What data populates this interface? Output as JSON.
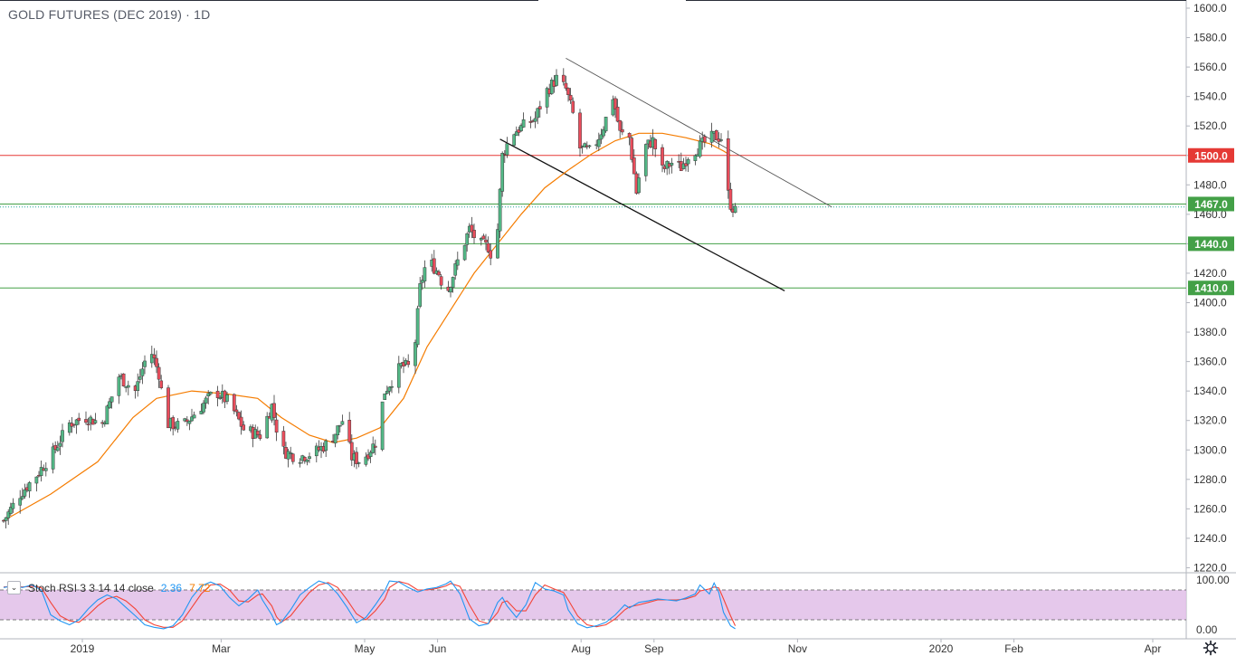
{
  "title": "GOLD FUTURES (DEC 2019) · 1D",
  "indicator": {
    "name": "Stoch RSI 3 3 14 14 close",
    "k_value": "2.36",
    "d_value": "7.72",
    "toggle_icon": "chevron-down-icon"
  },
  "settings_icon": "gear-icon",
  "colors": {
    "up": "#26a69a",
    "down": "#ef5350",
    "candle_body_up": "#53b987",
    "candle_body_down": "#eb4d5c",
    "ma": "#f57c00",
    "resistance": "#e53935",
    "support": "#43a047",
    "stoch_k": "#2196f3",
    "stoch_d": "#f44336",
    "stoch_band": "#e1bee7"
  },
  "chart_data": {
    "type": "candlestick",
    "price_axis": {
      "ticks": [
        "1600.0",
        "1580.0",
        "1560.0",
        "1540.0",
        "1520.0",
        "1500.0",
        "1480.0",
        "1460.0",
        "1440.0",
        "1420.0",
        "1400.0",
        "1380.0",
        "1360.0",
        "1340.0",
        "1320.0",
        "1300.0",
        "1280.0",
        "1260.0",
        "1240.0",
        "1220.0"
      ],
      "ylim": [
        1217,
        1603
      ]
    },
    "time_axis": {
      "labels": [
        "2019",
        "Mar",
        "May",
        "Jun",
        "Aug",
        "Sep",
        "Nov",
        "2020",
        "Feb",
        "Apr"
      ],
      "label_positions_days": [
        0,
        59,
        120,
        151,
        212,
        243,
        304,
        365,
        396,
        455
      ]
    },
    "horizontal_levels": [
      {
        "price": 1500.0,
        "label": "1500.0",
        "color": "#e53935"
      },
      {
        "price": 1467.0,
        "label": "1467.0",
        "color": "#43a047"
      },
      {
        "price": 1440.0,
        "label": "1440.0",
        "color": "#43a047"
      },
      {
        "price": 1410.0,
        "label": "1410.0",
        "color": "#43a047"
      }
    ],
    "trendlines": [
      {
        "from": {
          "day": 239,
          "price": 1566
        },
        "to": {
          "day": 352,
          "price": 1465
        }
      },
      {
        "from": {
          "day": 211,
          "price": 1511
        },
        "to": {
          "day": 332,
          "price": 1408
        }
      }
    ],
    "key_prices": [
      [
        0,
        1252
      ],
      [
        7,
        1270
      ],
      [
        14,
        1283
      ],
      [
        21,
        1298
      ],
      [
        28,
        1318
      ],
      [
        35,
        1322
      ],
      [
        42,
        1318
      ],
      [
        49,
        1350
      ],
      [
        56,
        1340
      ],
      [
        62,
        1370
      ],
      [
        66,
        1352
      ],
      [
        69,
        1318
      ],
      [
        76,
        1316
      ],
      [
        83,
        1328
      ],
      [
        90,
        1340
      ],
      [
        96,
        1332
      ],
      [
        102,
        1314
      ],
      [
        109,
        1310
      ],
      [
        114,
        1330
      ],
      [
        118,
        1300
      ],
      [
        125,
        1295
      ],
      [
        132,
        1298
      ],
      [
        139,
        1306
      ],
      [
        144,
        1320
      ],
      [
        148,
        1295
      ],
      [
        152,
        1292
      ],
      [
        158,
        1305
      ],
      [
        162,
        1340
      ],
      [
        169,
        1357
      ],
      [
        174,
        1356
      ],
      [
        177,
        1410
      ],
      [
        180,
        1430
      ],
      [
        185,
        1420
      ],
      [
        188,
        1405
      ],
      [
        193,
        1428
      ],
      [
        198,
        1450
      ],
      [
        202,
        1440
      ],
      [
        206,
        1438
      ],
      [
        209,
        1425
      ],
      [
        212,
        1500
      ],
      [
        216,
        1515
      ],
      [
        221,
        1520
      ],
      [
        226,
        1525
      ],
      [
        230,
        1542
      ],
      [
        235,
        1552
      ],
      [
        239,
        1545
      ],
      [
        242,
        1528
      ],
      [
        245,
        1505
      ],
      [
        250,
        1502
      ],
      [
        255,
        1520
      ],
      [
        259,
        1540
      ],
      [
        262,
        1515
      ],
      [
        266,
        1512
      ],
      [
        269,
        1475
      ],
      [
        272,
        1505
      ],
      [
        276,
        1510
      ],
      [
        280,
        1490
      ],
      [
        284,
        1495
      ],
      [
        288,
        1492
      ],
      [
        291,
        1500
      ],
      [
        295,
        1505
      ],
      [
        299,
        1510
      ],
      [
        302,
        1513
      ],
      [
        305,
        1512
      ],
      [
        307,
        1480
      ],
      [
        309,
        1467
      ],
      [
        311,
        1462
      ]
    ],
    "moving_average": [
      [
        0,
        1252
      ],
      [
        20,
        1270
      ],
      [
        40,
        1292
      ],
      [
        55,
        1322
      ],
      [
        65,
        1335
      ],
      [
        80,
        1340
      ],
      [
        95,
        1338
      ],
      [
        108,
        1335
      ],
      [
        118,
        1322
      ],
      [
        130,
        1310
      ],
      [
        140,
        1305
      ],
      [
        150,
        1308
      ],
      [
        160,
        1315
      ],
      [
        170,
        1335
      ],
      [
        180,
        1370
      ],
      [
        190,
        1395
      ],
      [
        200,
        1420
      ],
      [
        210,
        1440
      ],
      [
        220,
        1460
      ],
      [
        230,
        1478
      ],
      [
        240,
        1490
      ],
      [
        250,
        1501
      ],
      [
        260,
        1510
      ],
      [
        270,
        1515
      ],
      [
        280,
        1515
      ],
      [
        290,
        1512
      ],
      [
        300,
        1508
      ],
      [
        306,
        1503
      ],
      [
        309,
        1500
      ]
    ],
    "stoch_rsi": {
      "ylim": [
        0,
        100
      ],
      "axis_ticks": [
        "100.00",
        "0.00"
      ],
      "band": [
        20,
        80
      ],
      "k": [
        [
          0,
          85
        ],
        [
          4,
          88
        ],
        [
          8,
          85
        ],
        [
          12,
          90
        ],
        [
          16,
          80
        ],
        [
          20,
          30
        ],
        [
          24,
          18
        ],
        [
          28,
          10
        ],
        [
          32,
          20
        ],
        [
          36,
          42
        ],
        [
          40,
          60
        ],
        [
          44,
          70
        ],
        [
          48,
          62
        ],
        [
          52,
          45
        ],
        [
          56,
          28
        ],
        [
          60,
          10
        ],
        [
          64,
          5
        ],
        [
          68,
          2
        ],
        [
          72,
          8
        ],
        [
          76,
          30
        ],
        [
          80,
          65
        ],
        [
          84,
          88
        ],
        [
          88,
          96
        ],
        [
          92,
          88
        ],
        [
          96,
          65
        ],
        [
          100,
          48
        ],
        [
          104,
          62
        ],
        [
          108,
          80
        ],
        [
          110,
          60
        ],
        [
          114,
          30
        ],
        [
          116,
          10
        ],
        [
          118,
          15
        ],
        [
          122,
          40
        ],
        [
          126,
          70
        ],
        [
          130,
          85
        ],
        [
          134,
          98
        ],
        [
          138,
          92
        ],
        [
          142,
          72
        ],
        [
          146,
          45
        ],
        [
          150,
          14
        ],
        [
          154,
          25
        ],
        [
          158,
          50
        ],
        [
          162,
          78
        ],
        [
          164,
          98
        ],
        [
          168,
          96
        ],
        [
          172,
          85
        ],
        [
          176,
          76
        ],
        [
          180,
          82
        ],
        [
          184,
          85
        ],
        [
          188,
          92
        ],
        [
          190,
          98
        ],
        [
          194,
          72
        ],
        [
          198,
          22
        ],
        [
          202,
          8
        ],
        [
          206,
          12
        ],
        [
          210,
          55
        ],
        [
          212,
          65
        ],
        [
          214,
          48
        ],
        [
          218,
          25
        ],
        [
          222,
          50
        ],
        [
          226,
          95
        ],
        [
          230,
          82
        ],
        [
          234,
          78
        ],
        [
          238,
          70
        ],
        [
          240,
          40
        ],
        [
          244,
          12
        ],
        [
          248,
          4
        ],
        [
          252,
          8
        ],
        [
          256,
          15
        ],
        [
          260,
          30
        ],
        [
          264,
          50
        ],
        [
          266,
          44
        ],
        [
          270,
          55
        ],
        [
          274,
          58
        ],
        [
          278,
          62
        ],
        [
          282,
          60
        ],
        [
          286,
          58
        ],
        [
          290,
          64
        ],
        [
          294,
          72
        ],
        [
          296,
          90
        ],
        [
          300,
          72
        ],
        [
          302,
          94
        ],
        [
          304,
          75
        ],
        [
          306,
          35
        ],
        [
          309,
          8
        ],
        [
          311,
          2
        ]
      ],
      "d": [
        [
          0,
          86
        ],
        [
          4,
          87
        ],
        [
          8,
          86
        ],
        [
          12,
          87
        ],
        [
          16,
          85
        ],
        [
          20,
          55
        ],
        [
          24,
          28
        ],
        [
          28,
          18
        ],
        [
          32,
          15
        ],
        [
          36,
          30
        ],
        [
          40,
          48
        ],
        [
          44,
          62
        ],
        [
          48,
          67
        ],
        [
          52,
          58
        ],
        [
          56,
          42
        ],
        [
          60,
          20
        ],
        [
          64,
          10
        ],
        [
          68,
          5
        ],
        [
          72,
          5
        ],
        [
          76,
          18
        ],
        [
          80,
          45
        ],
        [
          84,
          72
        ],
        [
          88,
          90
        ],
        [
          92,
          92
        ],
        [
          96,
          80
        ],
        [
          100,
          58
        ],
        [
          104,
          56
        ],
        [
          108,
          70
        ],
        [
          110,
          72
        ],
        [
          114,
          48
        ],
        [
          116,
          26
        ],
        [
          118,
          15
        ],
        [
          122,
          28
        ],
        [
          126,
          52
        ],
        [
          130,
          75
        ],
        [
          134,
          90
        ],
        [
          138,
          95
        ],
        [
          142,
          85
        ],
        [
          146,
          60
        ],
        [
          150,
          32
        ],
        [
          154,
          20
        ],
        [
          158,
          38
        ],
        [
          162,
          62
        ],
        [
          164,
          85
        ],
        [
          168,
          97
        ],
        [
          172,
          92
        ],
        [
          176,
          80
        ],
        [
          180,
          80
        ],
        [
          184,
          83
        ],
        [
          188,
          88
        ],
        [
          190,
          93
        ],
        [
          194,
          87
        ],
        [
          198,
          50
        ],
        [
          202,
          18
        ],
        [
          206,
          12
        ],
        [
          210,
          35
        ],
        [
          212,
          55
        ],
        [
          214,
          58
        ],
        [
          218,
          38
        ],
        [
          222,
          38
        ],
        [
          226,
          70
        ],
        [
          230,
          90
        ],
        [
          234,
          82
        ],
        [
          238,
          75
        ],
        [
          240,
          60
        ],
        [
          244,
          28
        ],
        [
          248,
          10
        ],
        [
          252,
          6
        ],
        [
          256,
          10
        ],
        [
          260,
          22
        ],
        [
          264,
          40
        ],
        [
          266,
          46
        ],
        [
          270,
          50
        ],
        [
          274,
          55
        ],
        [
          278,
          60
        ],
        [
          282,
          60
        ],
        [
          286,
          60
        ],
        [
          290,
          62
        ],
        [
          294,
          68
        ],
        [
          296,
          78
        ],
        [
          300,
          82
        ],
        [
          302,
          86
        ],
        [
          304,
          84
        ],
        [
          306,
          62
        ],
        [
          309,
          28
        ],
        [
          311,
          8
        ]
      ]
    }
  }
}
